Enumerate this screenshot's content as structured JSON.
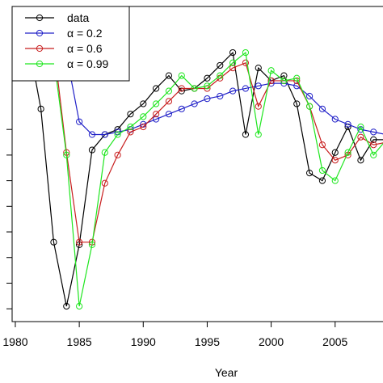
{
  "chart_data": {
    "type": "line",
    "title": "",
    "xlabel": "Year",
    "ylabel": "",
    "xlim": [
      1979.75,
      2009.5
    ],
    "ylim": [
      -0.5,
      11.8
    ],
    "x_ticks": [
      1980,
      1985,
      1990,
      1995,
      2000,
      2005
    ],
    "x_tick_labels": [
      "1980",
      "1985",
      "1990",
      "1995",
      "2000",
      "2005"
    ],
    "y_ticks": [
      0,
      1,
      2,
      3,
      4,
      5,
      6,
      7
    ],
    "grid": false,
    "legend_position": "top-left",
    "x": [
      1980,
      1981,
      1982,
      1983,
      1984,
      1985,
      1986,
      1987,
      1988,
      1989,
      1990,
      1991,
      1992,
      1993,
      1994,
      1995,
      1996,
      1997,
      1998,
      1999,
      2000,
      2001,
      2002,
      2003,
      2004,
      2005,
      2006,
      2007,
      2008,
      2009
    ],
    "series": [
      {
        "name": "data",
        "color": "#000000",
        "values": [
          10.7,
          10.5,
          7.8,
          2.6,
          0.1,
          2.5,
          6.2,
          6.8,
          7.0,
          7.6,
          8.0,
          8.6,
          9.1,
          8.5,
          8.6,
          9.0,
          9.5,
          10.0,
          6.8,
          9.4,
          8.9,
          9.1,
          8.0,
          5.3,
          5.0,
          6.1,
          7.1,
          5.8,
          6.6,
          6.6
        ]
      },
      {
        "name": "α = 0.2",
        "color": "#2020c8",
        "values": [
          10.7,
          10.6,
          10.6,
          10.5,
          9.9,
          7.3,
          6.8,
          6.8,
          6.9,
          7.0,
          7.2,
          7.4,
          7.6,
          7.8,
          8.0,
          8.2,
          8.3,
          8.5,
          8.6,
          8.7,
          8.8,
          8.8,
          8.7,
          8.3,
          7.8,
          7.4,
          7.2,
          7.0,
          6.9,
          6.8
        ]
      },
      {
        "name": "α = 0.6",
        "color": "#c81e1e",
        "values": [
          10.7,
          10.6,
          10.6,
          10.3,
          6.1,
          2.6,
          2.6,
          4.9,
          6.0,
          6.9,
          7.1,
          7.6,
          8.1,
          8.6,
          8.6,
          8.6,
          9.0,
          9.4,
          9.6,
          7.9,
          8.9,
          8.9,
          8.9,
          7.9,
          6.4,
          5.8,
          6.0,
          6.7,
          6.4,
          6.5
        ]
      },
      {
        "name": "α = 0.99",
        "color": "#1ee61e",
        "values": [
          10.7,
          10.7,
          10.5,
          9.8,
          6.0,
          0.1,
          2.5,
          6.1,
          6.8,
          7.1,
          7.5,
          8.0,
          8.5,
          9.1,
          8.6,
          8.7,
          9.1,
          9.6,
          10.0,
          6.8,
          9.3,
          8.9,
          9.0,
          7.9,
          5.4,
          5.0,
          6.1,
          7.1,
          6.0,
          6.6
        ]
      }
    ]
  },
  "legend": {
    "items": [
      {
        "label": "data",
        "color": "#000000"
      },
      {
        "label": "α = 0.2",
        "color": "#2020c8"
      },
      {
        "label": "α = 0.6",
        "color": "#c81e1e"
      },
      {
        "label": "α = 0.99",
        "color": "#1ee61e"
      }
    ]
  }
}
